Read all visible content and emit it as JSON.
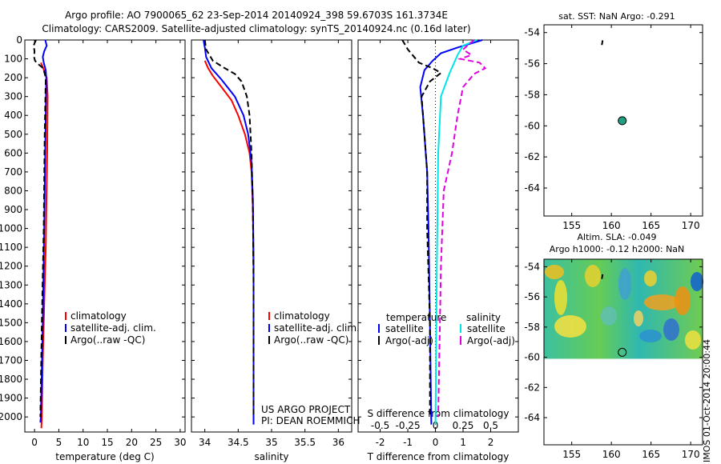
{
  "header": {
    "title_line1": "Argo profile: AO 7900065_62 23-Sep-2014 20140924_398 59.6703S 161.3734E",
    "title_line2": "Climatology: CARS2009. Satellite-adjusted climatology: synTS_20140924.nc (0.16d later)"
  },
  "stamp": "IMOS 01-Oct-2014 20:00:44",
  "credits": {
    "line1": "US ARGO PROJECT",
    "line2": "PI: DEAN ROEMMICH"
  },
  "colors": {
    "climatology": "#ff0000",
    "satellite": "#0000ff",
    "argo": "#000000",
    "sat_salinity": "#00e5e5",
    "argo_salinity": "#e000e0"
  },
  "chart_data": [
    {
      "type": "line",
      "xlabel": "temperature (deg C)",
      "xlim": [
        -2,
        31
      ],
      "ylim": [
        0,
        2080
      ],
      "xticks": [
        0,
        5,
        10,
        15,
        20,
        25,
        30
      ],
      "yticks": [
        0,
        100,
        200,
        300,
        400,
        500,
        600,
        700,
        800,
        900,
        1000,
        1100,
        1200,
        1300,
        1400,
        1500,
        1600,
        1700,
        1800,
        1900,
        2000
      ],
      "legend": [
        {
          "label": "climatology",
          "color": "#ff0000"
        },
        {
          "label": "satellite-adj. clim.",
          "color": "#0000ff"
        },
        {
          "label": "Argo(..raw -QC)",
          "color": "#000000"
        }
      ],
      "series": [
        {
          "color": "#ff0000",
          "style": "solid",
          "points": [
            [
              1.3,
              120
            ],
            [
              1.8,
              150
            ],
            [
              2.5,
              200
            ],
            [
              2.7,
              300
            ],
            [
              2.6,
              600
            ],
            [
              2.3,
              1100
            ],
            [
              2.0,
              1400
            ],
            [
              1.7,
              1700
            ],
            [
              1.5,
              2000
            ],
            [
              1.4,
              2060
            ]
          ]
        },
        {
          "color": "#0000ff",
          "style": "solid",
          "points": [
            [
              2.2,
              0
            ],
            [
              2.5,
              30
            ],
            [
              2.0,
              60
            ],
            [
              1.7,
              90
            ],
            [
              1.9,
              120
            ],
            [
              2.3,
              160
            ],
            [
              2.4,
              200
            ],
            [
              2.3,
              400
            ],
            [
              2.0,
              1000
            ],
            [
              1.7,
              1500
            ],
            [
              1.3,
              2000
            ],
            [
              1.2,
              2030
            ]
          ]
        },
        {
          "color": "#000000",
          "style": "dashed",
          "points": [
            [
              0.3,
              0
            ],
            [
              -0.2,
              30
            ],
            [
              0.0,
              60
            ],
            [
              -0.1,
              90
            ],
            [
              0.1,
              110
            ],
            [
              0.6,
              125
            ],
            [
              1.8,
              150
            ],
            [
              2.3,
              200
            ],
            [
              2.1,
              500
            ],
            [
              1.9,
              1000
            ],
            [
              1.5,
              1500
            ],
            [
              1.2,
              2000
            ]
          ]
        }
      ]
    },
    {
      "type": "line",
      "xlabel": "salinity",
      "xlim": [
        33.8,
        36.2
      ],
      "ylim": [
        0,
        2080
      ],
      "xticks": [
        34,
        34.5,
        35,
        35.5,
        36
      ],
      "legend": [
        {
          "label": "climatology",
          "color": "#ff0000"
        },
        {
          "label": "satellite-adj. clim.",
          "color": "#0000ff"
        },
        {
          "label": "Argo(..raw -QC)",
          "color": "#000000"
        }
      ],
      "series": [
        {
          "color": "#ff0000",
          "style": "solid",
          "points": [
            [
              34.0,
              110
            ],
            [
              34.05,
              150
            ],
            [
              34.12,
              190
            ],
            [
              34.25,
              250
            ],
            [
              34.4,
              320
            ],
            [
              34.5,
              400
            ],
            [
              34.6,
              500
            ],
            [
              34.67,
              600
            ],
            [
              34.7,
              700
            ],
            [
              34.72,
              900
            ],
            [
              34.73,
              1200
            ],
            [
              34.73,
              2040
            ]
          ]
        },
        {
          "color": "#0000ff",
          "style": "solid",
          "points": [
            [
              33.98,
              0
            ],
            [
              34.0,
              40
            ],
            [
              34.02,
              90
            ],
            [
              34.1,
              150
            ],
            [
              34.25,
              210
            ],
            [
              34.45,
              300
            ],
            [
              34.58,
              400
            ],
            [
              34.65,
              500
            ],
            [
              34.7,
              650
            ],
            [
              34.72,
              850
            ],
            [
              34.73,
              1200
            ],
            [
              34.73,
              2040
            ]
          ]
        },
        {
          "color": "#000000",
          "style": "dashed",
          "points": [
            [
              34.0,
              0
            ],
            [
              34.02,
              50
            ],
            [
              34.12,
              110
            ],
            [
              34.3,
              150
            ],
            [
              34.45,
              180
            ],
            [
              34.55,
              220
            ],
            [
              34.63,
              300
            ],
            [
              34.67,
              400
            ],
            [
              34.7,
              600
            ],
            [
              34.72,
              900
            ],
            [
              34.73,
              1300
            ],
            [
              34.73,
              2000
            ]
          ]
        }
      ]
    },
    {
      "type": "line",
      "xlabel": "T difference from climatology",
      "top_axis_label": "S difference from climatology",
      "xlim": [
        -2.8,
        3.0
      ],
      "ylim": [
        0,
        2080
      ],
      "xticks": [
        -2,
        -1,
        0,
        1,
        2
      ],
      "top_ticks": [
        "-0.5",
        "-0.25",
        "0",
        "0.25",
        "0.5"
      ],
      "legend_headers": [
        "temperature",
        "salinity"
      ],
      "legend": [
        {
          "label": "satellite",
          "color": "#0000ff",
          "group": "temperature"
        },
        {
          "label": "Argo(-adj)",
          "color": "#000000",
          "group": "temperature"
        },
        {
          "label": "satellite",
          "color": "#00e5e5",
          "group": "salinity"
        },
        {
          "label": "Argo(-adj)",
          "color": "#e000e0",
          "group": "salinity"
        }
      ],
      "series": [
        {
          "color": "#0000ff",
          "style": "solid",
          "points": [
            [
              1.7,
              0
            ],
            [
              0.8,
              40
            ],
            [
              0.2,
              70
            ],
            [
              -0.1,
              110
            ],
            [
              -0.4,
              160
            ],
            [
              -0.55,
              250
            ],
            [
              -0.45,
              400
            ],
            [
              -0.3,
              700
            ],
            [
              -0.25,
              1000
            ],
            [
              -0.2,
              1500
            ],
            [
              -0.15,
              2040
            ]
          ]
        },
        {
          "color": "#000000",
          "style": "dashed",
          "points": [
            [
              -1.2,
              0
            ],
            [
              -1.0,
              50
            ],
            [
              -0.6,
              120
            ],
            [
              -0.1,
              150
            ],
            [
              0.2,
              175
            ],
            [
              -0.2,
              220
            ],
            [
              -0.5,
              300
            ],
            [
              -0.4,
              500
            ],
            [
              -0.3,
              700
            ],
            [
              -0.3,
              1000
            ],
            [
              -0.2,
              1500
            ],
            [
              -0.2,
              2000
            ]
          ]
        },
        {
          "color": "#00e5e5",
          "style": "solid",
          "points": [
            [
              1.5,
              0
            ],
            [
              1.0,
              30
            ],
            [
              0.8,
              80
            ],
            [
              0.5,
              180
            ],
            [
              0.2,
              300
            ],
            [
              0.1,
              600
            ],
            [
              0.05,
              1200
            ],
            [
              0.0,
              2040
            ]
          ]
        },
        {
          "color": "#e000e0",
          "style": "dashed",
          "points": [
            [
              1.4,
              0
            ],
            [
              1.0,
              50
            ],
            [
              1.3,
              80
            ],
            [
              0.9,
              100
            ],
            [
              1.6,
              120
            ],
            [
              1.8,
              150
            ],
            [
              1.4,
              180
            ],
            [
              1.0,
              250
            ],
            [
              0.8,
              400
            ],
            [
              0.6,
              600
            ],
            [
              0.3,
              800
            ],
            [
              0.2,
              1200
            ],
            [
              0.1,
              2000
            ]
          ]
        }
      ]
    },
    {
      "type": "scatter",
      "title": "sat. SST: NaN Argo: -0.291",
      "xlim": [
        151.5,
        171.5
      ],
      "ylim": [
        -65.8,
        -53.5
      ],
      "xticks": [
        155,
        160,
        165,
        170
      ],
      "yticks": [
        -54,
        -56,
        -58,
        -60,
        -62,
        -64
      ],
      "profile_marker": {
        "lon": 161.37,
        "lat": -59.67,
        "color": "#20a080"
      }
    },
    {
      "type": "heatmap",
      "title_line1": "Altim. SLA: -0.049",
      "title_line2": "Argo h1000: -0.12 h2000: NaN",
      "xlim": [
        151.5,
        171.5
      ],
      "ylim": [
        -65.8,
        -53.5
      ],
      "xticks": [
        155,
        160,
        165,
        170
      ],
      "yticks": [
        -54,
        -56,
        -58,
        -60,
        -62,
        -64
      ],
      "profile_marker": {
        "lon": 161.37,
        "lat": -59.67,
        "color": "#20a080"
      }
    }
  ]
}
